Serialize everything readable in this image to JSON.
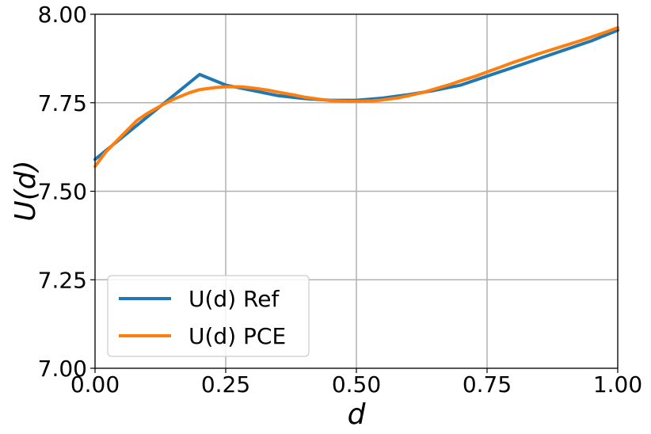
{
  "chart_data": {
    "type": "line",
    "xlabel": "d",
    "ylabel": "U(d)",
    "xlim": [
      0.0,
      1.0
    ],
    "ylim": [
      7.0,
      8.0
    ],
    "x_ticks": [
      "0.00",
      "0.25",
      "0.50",
      "0.75",
      "1.00"
    ],
    "y_ticks": [
      "7.00",
      "7.25",
      "7.50",
      "7.75",
      "8.00"
    ],
    "grid": true,
    "legend_position": "lower-left",
    "series": [
      {
        "name": "U(d) Ref",
        "color": "#1f77b4",
        "x": [
          0.0,
          0.05,
          0.1,
          0.15,
          0.2,
          0.25,
          0.3,
          0.35,
          0.4,
          0.45,
          0.5,
          0.55,
          0.6,
          0.65,
          0.7,
          0.75,
          0.8,
          0.85,
          0.9,
          0.95,
          1.0
        ],
        "y": [
          7.59,
          7.65,
          7.71,
          7.77,
          7.83,
          7.8,
          7.785,
          7.77,
          7.762,
          7.757,
          7.757,
          7.763,
          7.773,
          7.785,
          7.8,
          7.825,
          7.85,
          7.875,
          7.9,
          7.925,
          7.955
        ]
      },
      {
        "name": "U(d) PCE",
        "color": "#ff7f0e",
        "x": [
          0.0,
          0.02,
          0.05,
          0.08,
          0.1,
          0.13,
          0.15,
          0.18,
          0.2,
          0.23,
          0.25,
          0.28,
          0.3,
          0.33,
          0.35,
          0.38,
          0.4,
          0.43,
          0.45,
          0.48,
          0.5,
          0.53,
          0.55,
          0.58,
          0.6,
          0.63,
          0.65,
          0.68,
          0.7,
          0.73,
          0.75,
          0.78,
          0.8,
          0.83,
          0.85,
          0.88,
          0.9,
          0.93,
          0.95,
          0.98,
          1.0
        ],
        "y": [
          7.57,
          7.61,
          7.655,
          7.7,
          7.72,
          7.745,
          7.76,
          7.778,
          7.787,
          7.793,
          7.795,
          7.795,
          7.792,
          7.786,
          7.78,
          7.772,
          7.766,
          7.76,
          7.756,
          7.754,
          7.754,
          7.755,
          7.758,
          7.764,
          7.77,
          7.78,
          7.789,
          7.802,
          7.812,
          7.826,
          7.837,
          7.853,
          7.864,
          7.879,
          7.889,
          7.903,
          7.912,
          7.926,
          7.936,
          7.951,
          7.962
        ]
      }
    ]
  }
}
